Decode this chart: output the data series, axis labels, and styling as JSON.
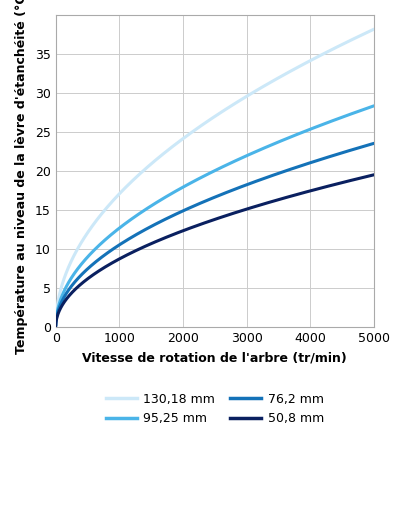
{
  "xlabel": "Vitesse de rotation de l'arbre (tr/min)",
  "ylabel": "Température au niveau de la lèvre d'étanchéité (°C)",
  "xlim": [
    0,
    5000
  ],
  "ylim": [
    0,
    40
  ],
  "xticks": [
    0,
    1000,
    2000,
    3000,
    4000,
    5000
  ],
  "yticks": [
    0,
    5,
    10,
    15,
    20,
    25,
    30,
    35
  ],
  "series": [
    {
      "label": "130,18 mm",
      "color": "#cce8f8",
      "linewidth": 2.2,
      "k": 0.54,
      "b": 0.5
    },
    {
      "label": "95,25 mm",
      "color": "#4ab4e8",
      "linewidth": 2.2,
      "k": 0.401,
      "b": 0.5
    },
    {
      "label": "76,2 mm",
      "color": "#1472b8",
      "linewidth": 2.2,
      "k": 0.333,
      "b": 0.5
    },
    {
      "label": "50,8 mm",
      "color": "#0a2060",
      "linewidth": 2.2,
      "k": 0.276,
      "b": 0.5
    }
  ],
  "background_color": "#ffffff",
  "grid_color": "#cccccc",
  "spine_color": "#aaaaaa",
  "tick_labelsize": 9,
  "xlabel_fontsize": 9,
  "ylabel_fontsize": 9,
  "legend_fontsize": 9
}
